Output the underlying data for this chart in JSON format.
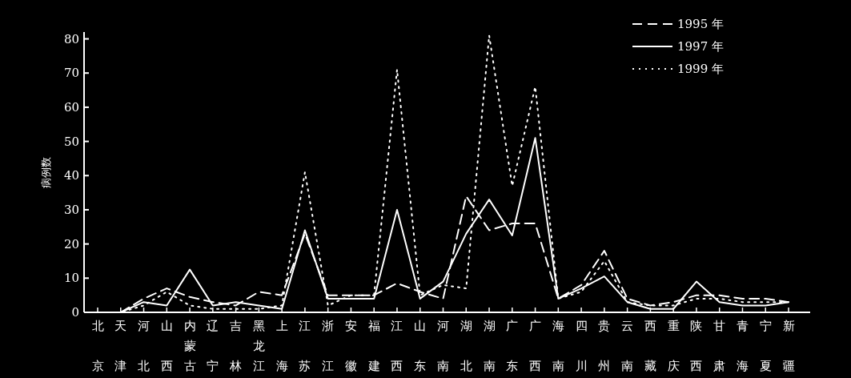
{
  "chart_data": {
    "type": "line",
    "ylabel": "病例数",
    "categories": [
      "北京",
      "天津",
      "河北",
      "山西",
      "内蒙古",
      "辽宁",
      "吉林",
      "黑龙江",
      "上海",
      "江苏",
      "浙江",
      "安徽",
      "福建",
      "江西",
      "山东",
      "河南",
      "湖北",
      "湖南",
      "广东",
      "广西",
      "海南",
      "四川",
      "贵州",
      "云南",
      "西藏",
      "重庆",
      "陕西",
      "甘肃",
      "青海",
      "宁夏",
      "新疆"
    ],
    "ylim": [
      0,
      82
    ],
    "yticks": [
      0,
      10,
      20,
      30,
      40,
      50,
      60,
      70,
      80
    ],
    "legend": "top right",
    "grid": false,
    "marker": "none",
    "series": [
      {
        "name": "1995 年",
        "color": "#ffffff",
        "line_style": "dashed",
        "values": [
          null,
          0,
          4,
          7,
          4.5,
          3,
          2,
          6,
          5,
          23,
          5,
          5,
          5,
          8.5,
          6,
          4,
          34,
          24,
          26,
          26,
          4,
          8,
          18,
          4,
          2,
          3,
          5,
          5,
          4,
          4,
          3
        ]
      },
      {
        "name": "1997 年",
        "color": "#ffffff",
        "line_style": "solid",
        "values": [
          0,
          0,
          3,
          2,
          12.5,
          2,
          3,
          2,
          1,
          24,
          4,
          4,
          4,
          30,
          4,
          9,
          23,
          33,
          22.5,
          51,
          4,
          7,
          10.5,
          3,
          1,
          1,
          9,
          3,
          2,
          2,
          3
        ]
      },
      {
        "name": "1999 年",
        "color": "#ffffff",
        "line_style": "dotted",
        "values": [
          0,
          0,
          2,
          6,
          2,
          1,
          1,
          1,
          2,
          41,
          2,
          5,
          5,
          71,
          5,
          8,
          7,
          81,
          37,
          66,
          4,
          6,
          15,
          3,
          2,
          2,
          4,
          4,
          3,
          3,
          3
        ]
      }
    ]
  }
}
